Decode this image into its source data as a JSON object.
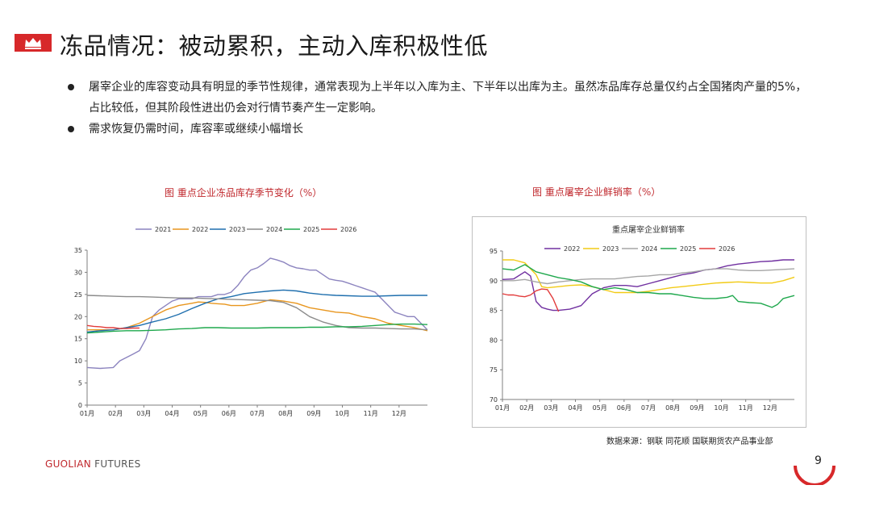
{
  "header": {
    "title": "冻品情况：被动累积，主动入库积极性低",
    "logo": "crown-logo"
  },
  "bullets": [
    "屠宰企业的库容变动具有明显的季节性规律，通常表现为上半年以入库为主、下半年以出库为主。虽然冻品库存总量仅约占全国猪肉产量的5%，占比较低，但其阶段性进出仍会对行情节奏产生一定影响。",
    "需求恢复仍需时间，库容率或继续小幅增长"
  ],
  "captions": {
    "left": "图  重点企业冻品库存季节变化（%）",
    "right": "图  重点屠宰企业鲜销率（%）"
  },
  "footer": {
    "brand_main": "GUOLIAN",
    "brand_sub": " FUTURES",
    "source": "数据来源：钢联 同花顺 国联期货农产品事业部",
    "page_number": "9"
  },
  "chart_data": [
    {
      "type": "line",
      "title": "",
      "xlabel": "",
      "ylabel": "",
      "categories": [
        "01月",
        "02月",
        "03月",
        "04月",
        "05月",
        "06月",
        "07月",
        "08月",
        "09月",
        "10月",
        "11月",
        "12月"
      ],
      "ylim": [
        0,
        35
      ],
      "yticks": [
        0,
        5,
        10,
        15,
        20,
        25,
        30,
        35
      ],
      "legend_position": "top",
      "x_unit": "week of year (1-53)",
      "series": [
        {
          "name": "2021",
          "color": "#8c84bf",
          "x": [
            1,
            3,
            5,
            6,
            8,
            9,
            10,
            11,
            12,
            13,
            14,
            15,
            17,
            18,
            20,
            21,
            22,
            23,
            24,
            25,
            26,
            27,
            28,
            29,
            30,
            31,
            32,
            33,
            34,
            35,
            36,
            37,
            38,
            39,
            40,
            41,
            42,
            43,
            44,
            45,
            46,
            48,
            49,
            50,
            51,
            52,
            53
          ],
          "values": [
            8.5,
            8.3,
            8.5,
            10.0,
            11.5,
            12.3,
            15.0,
            20.0,
            21.5,
            22.5,
            23.5,
            24.0,
            24.0,
            24.5,
            24.5,
            25.0,
            25.0,
            25.5,
            27.0,
            29.0,
            30.5,
            31.0,
            32.0,
            33.2,
            32.8,
            32.3,
            31.5,
            31.0,
            30.8,
            30.5,
            30.5,
            29.5,
            28.5,
            28.2,
            28.0,
            27.5,
            27.0,
            26.5,
            26.0,
            25.5,
            24.0,
            21.0,
            20.5,
            20.0,
            20.0,
            18.5,
            17.0
          ]
        },
        {
          "name": "2022",
          "color": "#e8961e",
          "x": [
            1,
            3,
            5,
            7,
            9,
            11,
            13,
            15,
            17,
            18,
            19,
            20,
            21,
            22,
            23,
            25,
            27,
            29,
            31,
            33,
            35,
            37,
            39,
            41,
            43,
            45,
            47,
            49,
            51,
            53
          ],
          "values": [
            17.0,
            17.0,
            17.0,
            17.5,
            18.5,
            20.0,
            21.5,
            22.5,
            23.0,
            23.3,
            23.2,
            23.0,
            22.9,
            22.8,
            22.5,
            22.5,
            23.0,
            23.8,
            23.5,
            23.0,
            22.0,
            21.5,
            21.0,
            20.8,
            20.0,
            19.5,
            18.5,
            18.0,
            17.5,
            16.8
          ]
        },
        {
          "name": "2023",
          "color": "#1f6fae",
          "x": [
            1,
            3,
            5,
            7,
            9,
            11,
            13,
            15,
            17,
            19,
            21,
            23,
            25,
            27,
            29,
            31,
            33,
            35,
            37,
            39,
            41,
            43,
            45,
            47,
            49,
            51,
            53
          ],
          "values": [
            16.5,
            16.8,
            17.0,
            17.5,
            18.0,
            18.8,
            19.5,
            20.5,
            21.8,
            23.0,
            24.0,
            24.5,
            25.2,
            25.5,
            25.8,
            26.0,
            25.8,
            25.3,
            25.0,
            24.8,
            24.7,
            24.6,
            24.6,
            24.7,
            24.8,
            24.8,
            24.8
          ]
        },
        {
          "name": "2024",
          "color": "#8c8c8c",
          "x": [
            1,
            3,
            5,
            7,
            9,
            11,
            13,
            15,
            17,
            19,
            21,
            23,
            25,
            27,
            29,
            31,
            33,
            35,
            37,
            39,
            41,
            43,
            45,
            47,
            49,
            51,
            53
          ],
          "values": [
            24.8,
            24.7,
            24.6,
            24.5,
            24.5,
            24.4,
            24.3,
            24.2,
            24.2,
            24.1,
            24.0,
            23.9,
            23.8,
            23.7,
            23.6,
            23.2,
            22.0,
            20.0,
            18.8,
            18.0,
            17.5,
            17.4,
            17.4,
            17.3,
            17.2,
            17.2,
            17.0
          ]
        },
        {
          "name": "2025",
          "color": "#1fa84d",
          "x": [
            1,
            3,
            5,
            7,
            9,
            11,
            13,
            15,
            17,
            19,
            21,
            23,
            25,
            27,
            29,
            31,
            33,
            35,
            37,
            39,
            41,
            43,
            45,
            47,
            49,
            51,
            53
          ],
          "values": [
            16.3,
            16.5,
            16.7,
            16.8,
            16.8,
            16.9,
            17.0,
            17.2,
            17.3,
            17.5,
            17.5,
            17.4,
            17.4,
            17.4,
            17.5,
            17.5,
            17.5,
            17.6,
            17.6,
            17.7,
            17.7,
            17.8,
            18.0,
            18.2,
            18.3,
            18.3,
            18.2
          ]
        },
        {
          "name": "2026",
          "color": "#e23b3b",
          "x": [
            1,
            2,
            3,
            4,
            5,
            6,
            7,
            8,
            9
          ],
          "values": [
            18.0,
            17.8,
            17.7,
            17.5,
            17.5,
            17.3,
            17.3,
            17.4,
            17.4
          ]
        }
      ]
    },
    {
      "type": "line",
      "title": "重点屠宰企业鲜销率",
      "xlabel": "",
      "ylabel": "",
      "categories": [
        "01月",
        "02月",
        "03月",
        "04月",
        "05月",
        "06月",
        "07月",
        "08月",
        "09月",
        "10月",
        "11月",
        "12月"
      ],
      "ylim": [
        70,
        95
      ],
      "yticks": [
        70,
        75,
        80,
        85,
        90,
        95
      ],
      "legend_position": "top",
      "x_unit": "week of year (1-53)",
      "series": [
        {
          "name": "2022",
          "color": "#7030a0",
          "x": [
            1,
            3,
            5,
            6,
            7,
            8,
            9,
            10,
            11,
            13,
            15,
            17,
            19,
            21,
            23,
            25,
            27,
            29,
            31,
            33,
            35,
            37,
            39,
            41,
            43,
            45,
            47,
            49,
            51,
            53
          ],
          "values": [
            90.2,
            90.3,
            91.5,
            90.8,
            86.5,
            85.5,
            85.2,
            85.0,
            85.0,
            85.2,
            85.8,
            87.8,
            88.8,
            89.2,
            89.2,
            89.0,
            89.5,
            90.0,
            90.5,
            91.0,
            91.3,
            91.8,
            92.0,
            92.5,
            92.8,
            93.0,
            93.2,
            93.3,
            93.5,
            93.5
          ]
        },
        {
          "name": "2023",
          "color": "#f2cb16",
          "x": [
            1,
            3,
            5,
            6,
            7,
            8,
            9,
            11,
            13,
            15,
            17,
            19,
            21,
            23,
            25,
            27,
            29,
            31,
            33,
            35,
            37,
            39,
            41,
            43,
            45,
            47,
            49,
            51,
            53
          ],
          "values": [
            93.5,
            93.5,
            93.0,
            92.0,
            91.0,
            89.0,
            88.8,
            89.0,
            89.2,
            89.3,
            89.0,
            88.5,
            88.0,
            88.0,
            88.0,
            88.2,
            88.5,
            88.8,
            89.0,
            89.2,
            89.4,
            89.6,
            89.7,
            89.8,
            89.7,
            89.6,
            89.6,
            90.0,
            90.6
          ]
        },
        {
          "name": "2024",
          "color": "#a6a6a6",
          "x": [
            1,
            3,
            5,
            7,
            9,
            11,
            13,
            15,
            17,
            19,
            21,
            23,
            25,
            27,
            29,
            31,
            33,
            35,
            37,
            39,
            41,
            43,
            45,
            47,
            49,
            51,
            53
          ],
          "values": [
            90.0,
            90.0,
            90.2,
            89.8,
            89.5,
            89.8,
            90.0,
            90.2,
            90.3,
            90.3,
            90.3,
            90.5,
            90.7,
            90.8,
            91.0,
            91.0,
            91.3,
            91.5,
            91.8,
            92.0,
            92.0,
            91.8,
            91.7,
            91.7,
            91.8,
            91.9,
            92.0
          ]
        },
        {
          "name": "2025",
          "color": "#1fa84d",
          "x": [
            1,
            3,
            5,
            7,
            9,
            11,
            13,
            15,
            17,
            19,
            21,
            23,
            25,
            27,
            29,
            31,
            33,
            35,
            37,
            39,
            41,
            42,
            43,
            45,
            47,
            49,
            50,
            51,
            53
          ],
          "values": [
            92.0,
            91.8,
            92.7,
            91.5,
            91.0,
            90.5,
            90.2,
            89.8,
            89.0,
            88.5,
            88.8,
            88.5,
            88.0,
            88.0,
            87.8,
            87.8,
            87.5,
            87.2,
            87.0,
            87.0,
            87.2,
            87.5,
            86.5,
            86.3,
            86.2,
            85.5,
            86.0,
            87.0,
            87.5
          ]
        },
        {
          "name": "2026",
          "color": "#e23b3b",
          "x": [
            1,
            2,
            3,
            4,
            5,
            6,
            7,
            8,
            9,
            10,
            11
          ],
          "values": [
            87.8,
            87.6,
            87.6,
            87.4,
            87.3,
            87.6,
            88.3,
            88.6,
            88.5,
            87.0,
            84.8
          ]
        }
      ]
    }
  ]
}
